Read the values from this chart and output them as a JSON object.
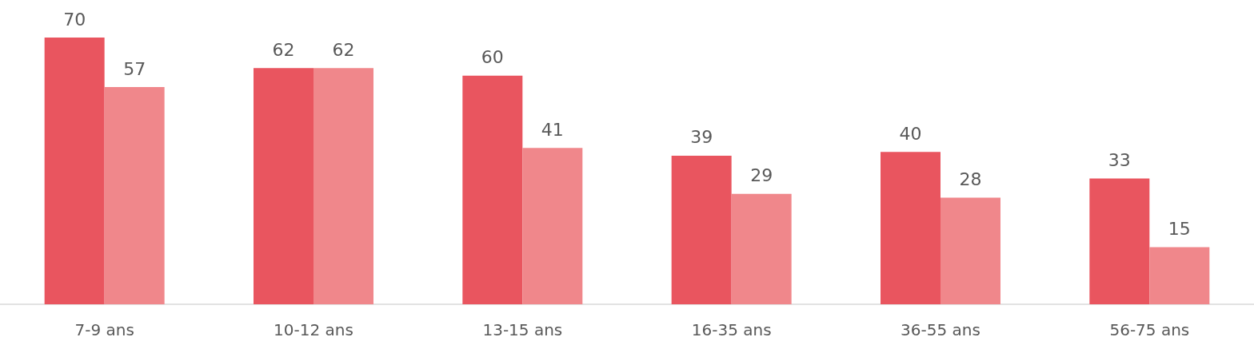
{
  "chart_data": {
    "type": "bar",
    "categories": [
      "7-9 ans",
      "10-12 ans",
      "13-15 ans",
      "16-35 ans",
      "36-55 ans",
      "56-75 ans"
    ],
    "series": [
      {
        "color": "#e9555f",
        "values": [
          70,
          62,
          60,
          39,
          40,
          33
        ]
      },
      {
        "color": "#f0878b",
        "values": [
          57,
          62,
          41,
          29,
          28,
          15
        ]
      }
    ],
    "data_labels": true
  }
}
